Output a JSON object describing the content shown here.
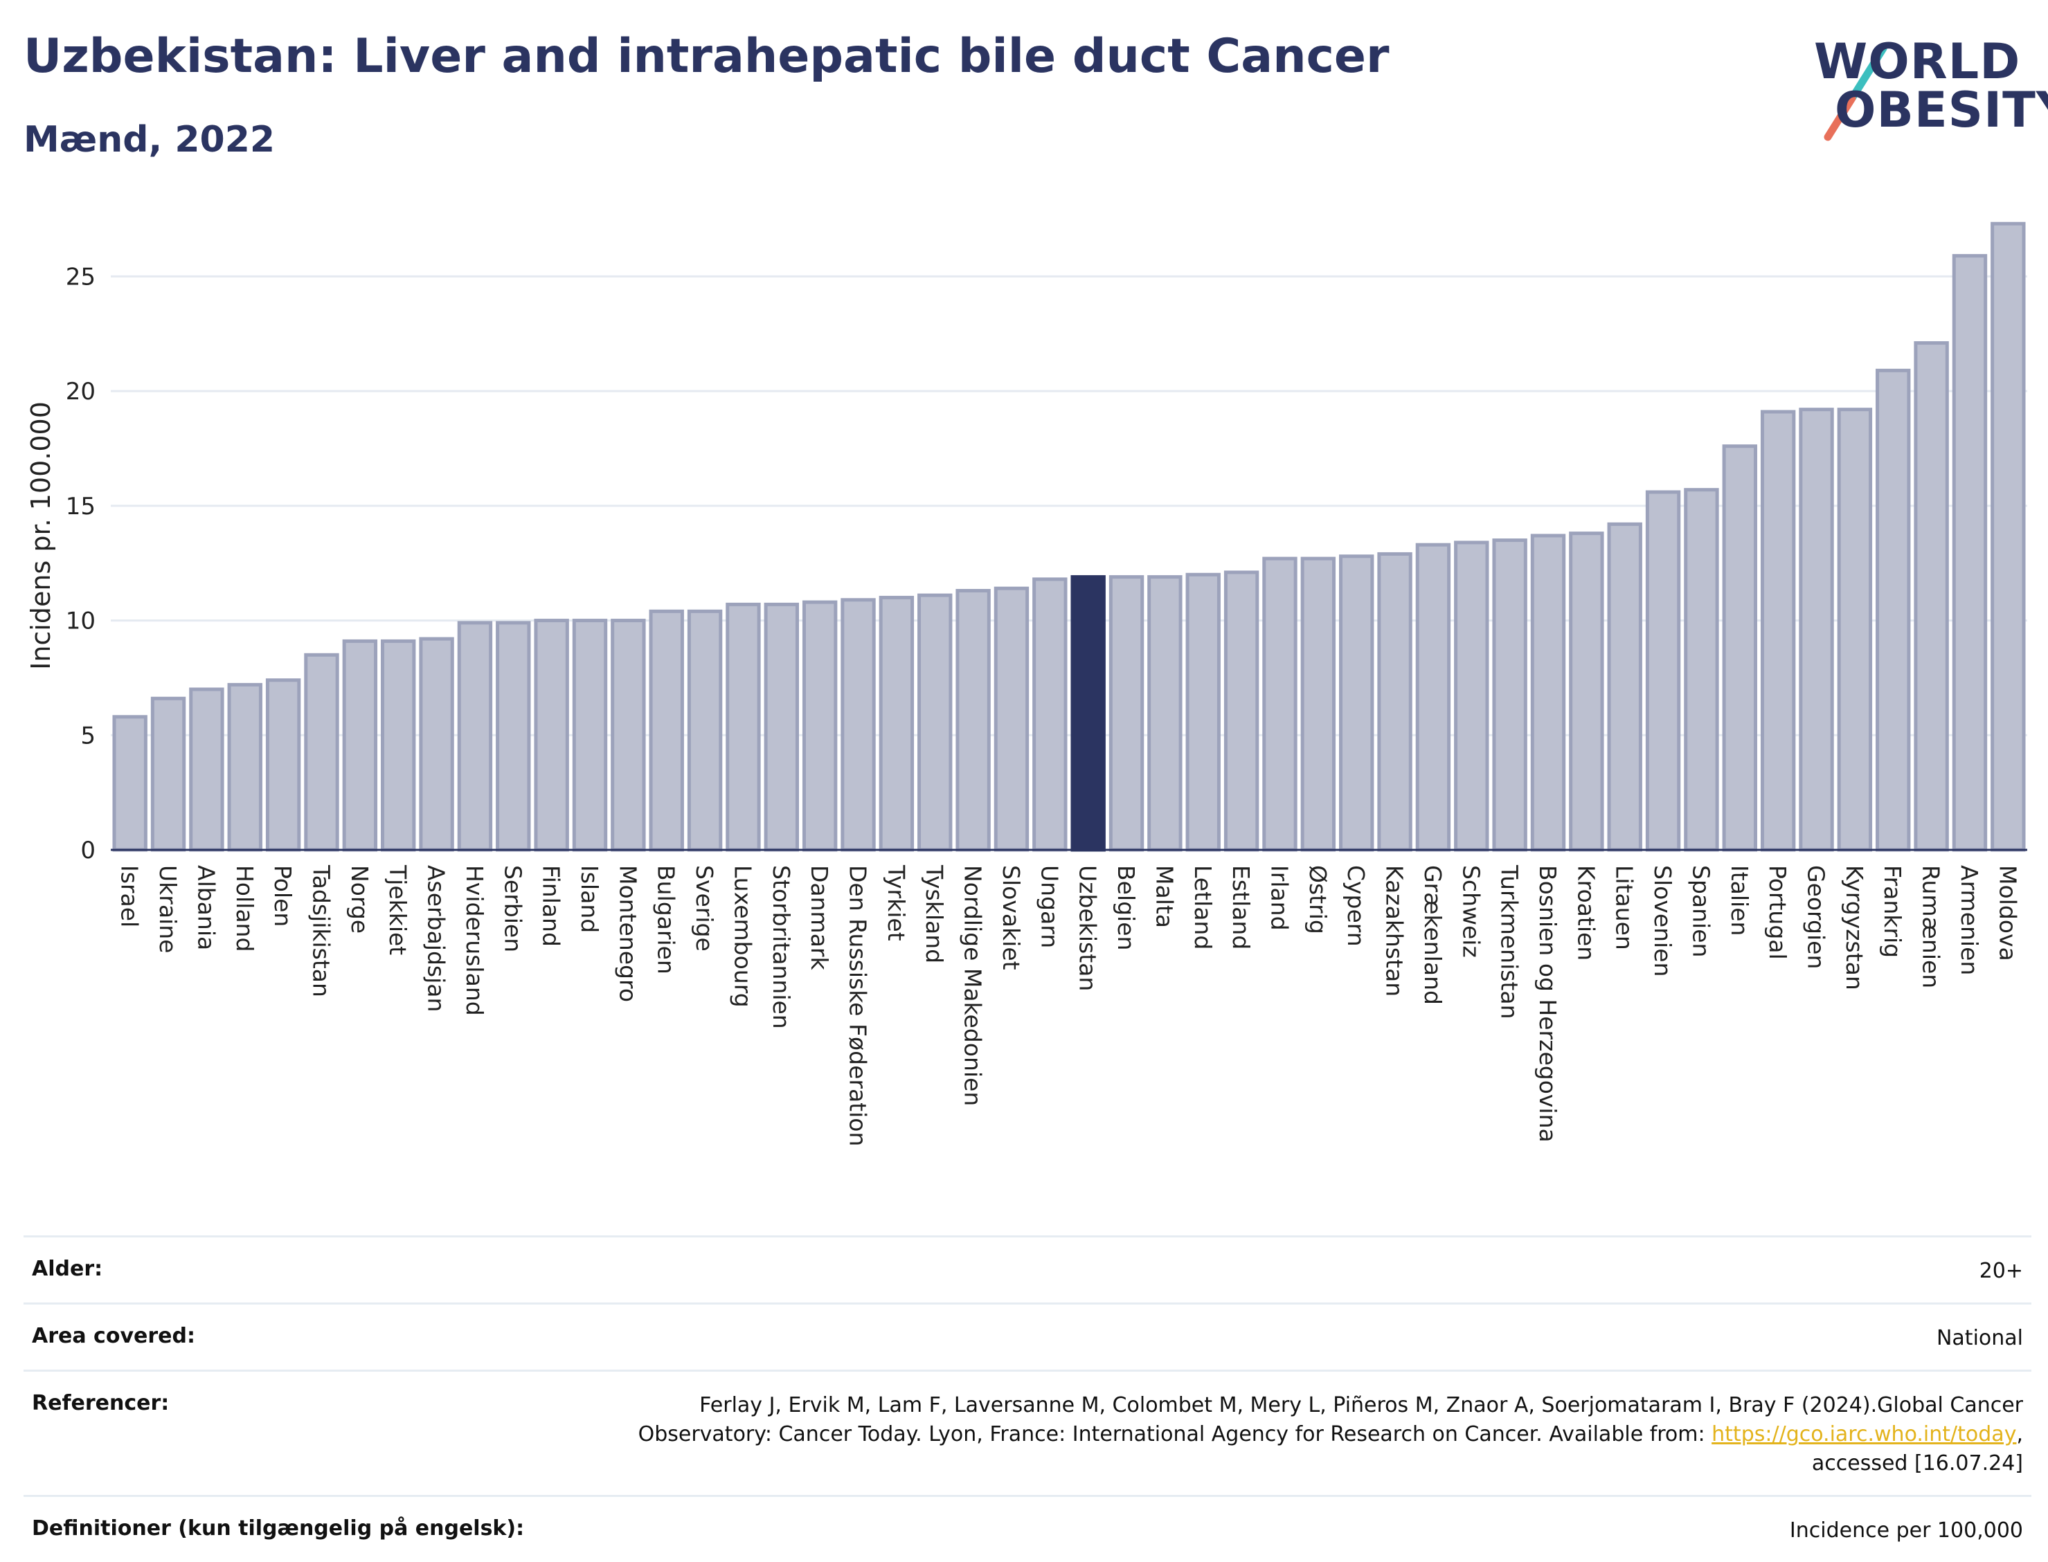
{
  "header": {
    "title": "Uzbekistan: Liver and intrahepatic bile duct Cancer",
    "subtitle": "Mænd, 2022"
  },
  "logo": {
    "line1": "WORLD",
    "line2": "OBESITY",
    "colors": {
      "text": "#2b3461",
      "slash_top": "#3cbfbf",
      "slash_bottom": "#e8705a"
    }
  },
  "chart_data": {
    "type": "bar",
    "ylabel": "Incidens pr. 100.000",
    "xlabel": "",
    "ylim": [
      0,
      28
    ],
    "yticks": [
      0,
      5,
      10,
      15,
      20,
      25
    ],
    "grid": true,
    "highlight": "Uzbekistan",
    "colors": {
      "bar": "#bcc0d0",
      "bar_edge": "#9ca2bb",
      "highlight": "#2b3461",
      "grid": "#e5eaf1"
    },
    "categories": [
      "Israel",
      "Ukraine",
      "Albania",
      "Holland",
      "Polen",
      "Tadsjikistan",
      "Norge",
      "Tjekkiet",
      "Aserbajdsjan",
      "Hviderusland",
      "Serbien",
      "Finland",
      "Island",
      "Montenegro",
      "Bulgarien",
      "Sverige",
      "Luxembourg",
      "Storbritannien",
      "Danmark",
      "Den Russiske Føderation",
      "Tyrkiet",
      "Tyskland",
      "Nordlige Makedonien",
      "Slovakiet",
      "Ungarn",
      "Uzbekistan",
      "Belgien",
      "Malta",
      "Letland",
      "Estland",
      "Irland",
      "Østrig",
      "Cypern",
      "Kazakhstan",
      "Grækenland",
      "Schweiz",
      "Turkmenistan",
      "Bosnien og Herzegovina",
      "Kroatien",
      "Litauen",
      "Slovenien",
      "Spanien",
      "Italien",
      "Portugal",
      "Georgien",
      "Kyrgyzstan",
      "Frankrig",
      "Rumænien",
      "Armenien",
      "Moldova"
    ],
    "values": [
      5.8,
      6.6,
      7.0,
      7.2,
      7.4,
      8.5,
      9.1,
      9.1,
      9.2,
      9.9,
      9.9,
      10.0,
      10.0,
      10.0,
      10.4,
      10.4,
      10.7,
      10.7,
      10.8,
      10.9,
      11.0,
      11.1,
      11.3,
      11.4,
      11.8,
      11.9,
      11.9,
      11.9,
      12.0,
      12.1,
      12.7,
      12.7,
      12.8,
      12.9,
      13.3,
      13.4,
      13.5,
      13.7,
      13.8,
      14.2,
      15.6,
      15.7,
      17.6,
      19.1,
      19.2,
      19.2,
      20.9,
      22.1,
      25.9,
      27.3
    ]
  },
  "info_table": [
    {
      "key": "Alder:",
      "value": "20+"
    },
    {
      "key": "Area covered:",
      "value": "National"
    },
    {
      "key": "Referencer:",
      "value": "Ferlay J, Ervik M, Lam F, Laversanne M, Colombet M, Mery L, Piñeros M, Znaor A, Soerjomataram I, Bray F (2024).Global Cancer Observatory: Cancer Today. Lyon, France: International Agency for Research on Cancer. Available from: ",
      "link": "https://gco.iarc.who.int/today",
      "suffix": ", accessed [16.07.24]"
    },
    {
      "key": "Definitioner (kun tilgængelig på engelsk):",
      "value": "Incidence per 100,000"
    }
  ]
}
